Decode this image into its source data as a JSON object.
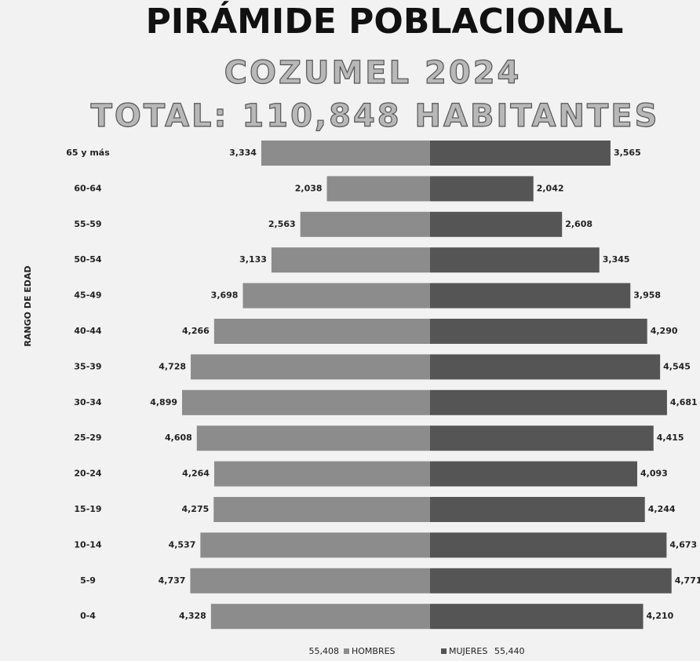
{
  "chart_data": {
    "type": "pyramid",
    "title": "PIRÁMIDE POBLACIONAL",
    "subtitle": "COZUMEL 2024",
    "total": "TOTAL: 110,848 HABITANTES",
    "ylabel": "RANGO DE EDAD",
    "categories": [
      "65 y más",
      "60-64",
      "55-59",
      "50-54",
      "45-49",
      "40-44",
      "35-39",
      "30-34",
      "25-29",
      "20-24",
      "15-19",
      "10-14",
      "5-9",
      "0-4"
    ],
    "series": [
      {
        "name": "HOMBRES",
        "color": "#8c8c8c",
        "total": "55,408",
        "values": [
          3334,
          2038,
          2563,
          3133,
          3698,
          4266,
          4728,
          4899,
          4608,
          4264,
          4275,
          4537,
          4737,
          4328
        ],
        "value_labels": [
          "3,334",
          "2,038",
          "2,563",
          "3,133",
          "3,698",
          "4,266",
          "4,728",
          "4,899",
          "4,608",
          "4,264",
          "4,275",
          "4,537",
          "4,737",
          "4,328"
        ]
      },
      {
        "name": "MUJERES",
        "color": "#555555",
        "total": "55,440",
        "values": [
          3565,
          2042,
          2608,
          3345,
          3958,
          4290,
          4545,
          4681,
          4415,
          4093,
          4244,
          4673,
          4771,
          4210
        ],
        "value_labels": [
          "3,565",
          "2,042",
          "2,608",
          "3,345",
          "3,958",
          "4,290",
          "4,545",
          "4,681",
          "4,415",
          "4,093",
          "4,244",
          "4,673",
          "4,771",
          "4,210"
        ]
      }
    ]
  }
}
